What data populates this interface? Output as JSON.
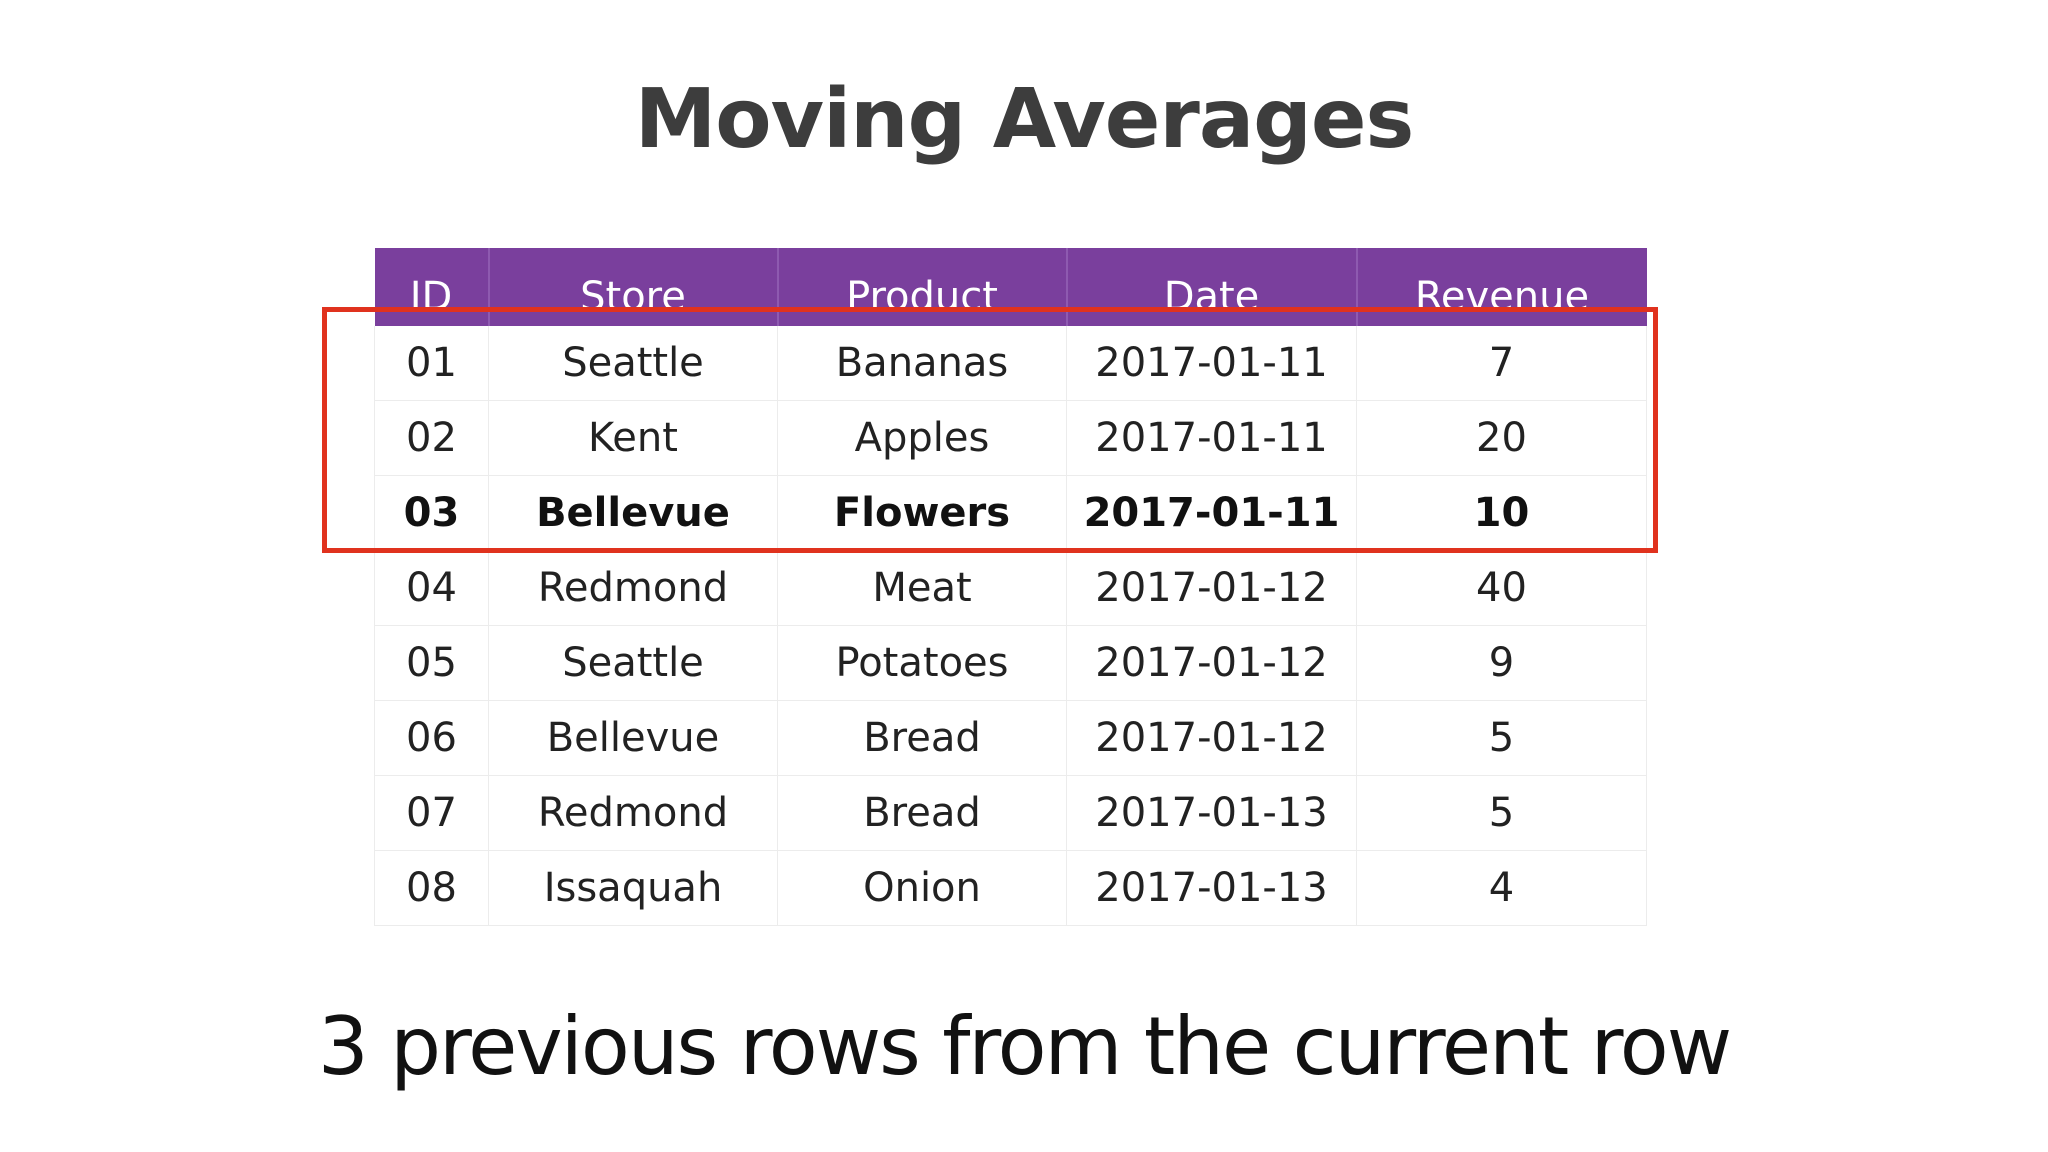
{
  "title": "Moving Averages",
  "table": {
    "headers": [
      "ID",
      "Store",
      "Product",
      "Date",
      "Revenue"
    ],
    "rows": [
      [
        "01",
        "Seattle",
        "Bananas",
        "2017-01-11",
        "7"
      ],
      [
        "02",
        "Kent",
        "Apples",
        "2017-01-11",
        "20"
      ],
      [
        "03",
        "Bellevue",
        "Flowers",
        "2017-01-11",
        "10"
      ],
      [
        "04",
        "Redmond",
        "Meat",
        "2017-01-12",
        "40"
      ],
      [
        "05",
        "Seattle",
        "Potatoes",
        "2017-01-12",
        "9"
      ],
      [
        "06",
        "Bellevue",
        "Bread",
        "2017-01-12",
        "5"
      ],
      [
        "07",
        "Redmond",
        "Bread",
        "2017-01-13",
        "5"
      ],
      [
        "08",
        "Issaquah",
        "Onion",
        "2017-01-13",
        "4"
      ]
    ]
  },
  "caption": "3 previous rows from the current row",
  "colors": {
    "header_background": "#7a3f9d",
    "window_highlight": "#e0321e"
  }
}
